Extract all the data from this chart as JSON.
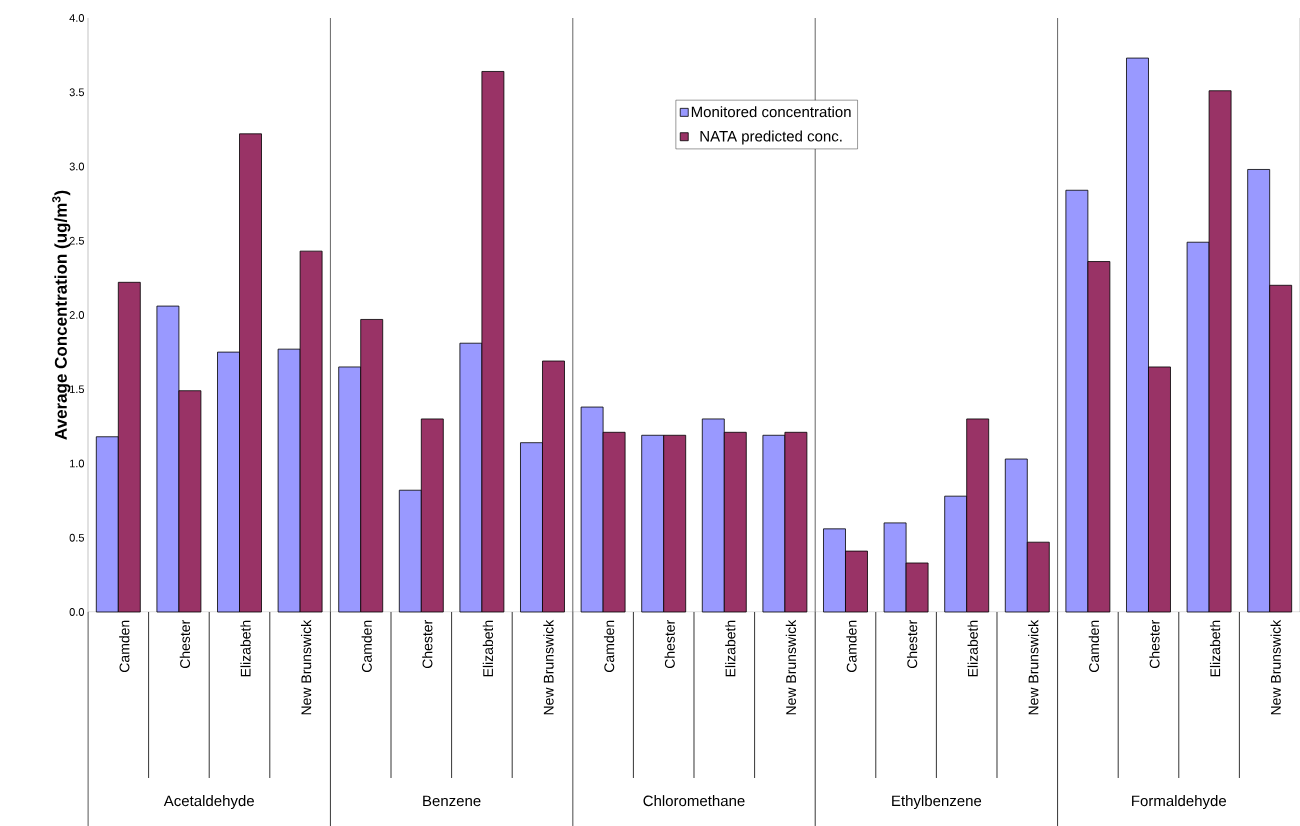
{
  "chart_data": {
    "type": "bar",
    "ylabel": "Average Concentration (ug/m$^{3}$)",
    "categories": [
      "Camden",
      "Chester",
      "Elizabeth",
      "New Brunswick",
      "Camden",
      "Chester",
      "Elizabeth",
      "New Brunswick",
      "Camden",
      "Chester",
      "Elizabeth",
      "New Brunswick",
      "Camden",
      "Chester",
      "Elizabeth",
      "New Brunswick",
      "Camden",
      "Chester",
      "Elizabeth",
      "New Brunswick"
    ],
    "annotations": [
      "Acetaldehyde",
      "Benzene",
      "Chloromethane",
      "Ethylbenzene",
      "Formaldehyde"
    ],
    "series": [
      {
        "name": "Monitored concentration",
        "color": "#9999ff",
        "values": [
          1.18,
          2.06,
          1.75,
          1.77,
          1.65,
          0.82,
          1.81,
          1.14,
          1.38,
          1.19,
          1.3,
          1.19,
          0.56,
          0.6,
          0.78,
          1.03,
          2.84,
          3.73,
          2.49,
          2.98
        ]
      },
      {
        "name": "NATA predicted conc.",
        "color": "#993366",
        "values": [
          2.22,
          1.49,
          3.22,
          2.43,
          1.97,
          1.3,
          3.64,
          1.69,
          1.21,
          1.19,
          1.21,
          1.21,
          0.41,
          0.33,
          1.3,
          0.47,
          2.36,
          1.65,
          3.51,
          2.2
        ]
      }
    ],
    "ylim": [
      0,
      4
    ],
    "yticks": [
      {
        "value": 0,
        "label": "0.0"
      },
      {
        "value": 0.5,
        "label": "0.5"
      },
      {
        "value": 1,
        "label": "1.0"
      },
      {
        "value": 1.5,
        "label": "1.5"
      },
      {
        "value": 2,
        "label": "2.0"
      },
      {
        "value": 2.5,
        "label": "2.5"
      },
      {
        "value": 3,
        "label": "3.0"
      },
      {
        "value": 3.5,
        "label": "3.5"
      },
      {
        "value": 4,
        "label": "4.0"
      }
    ],
    "legend": "top"
  }
}
